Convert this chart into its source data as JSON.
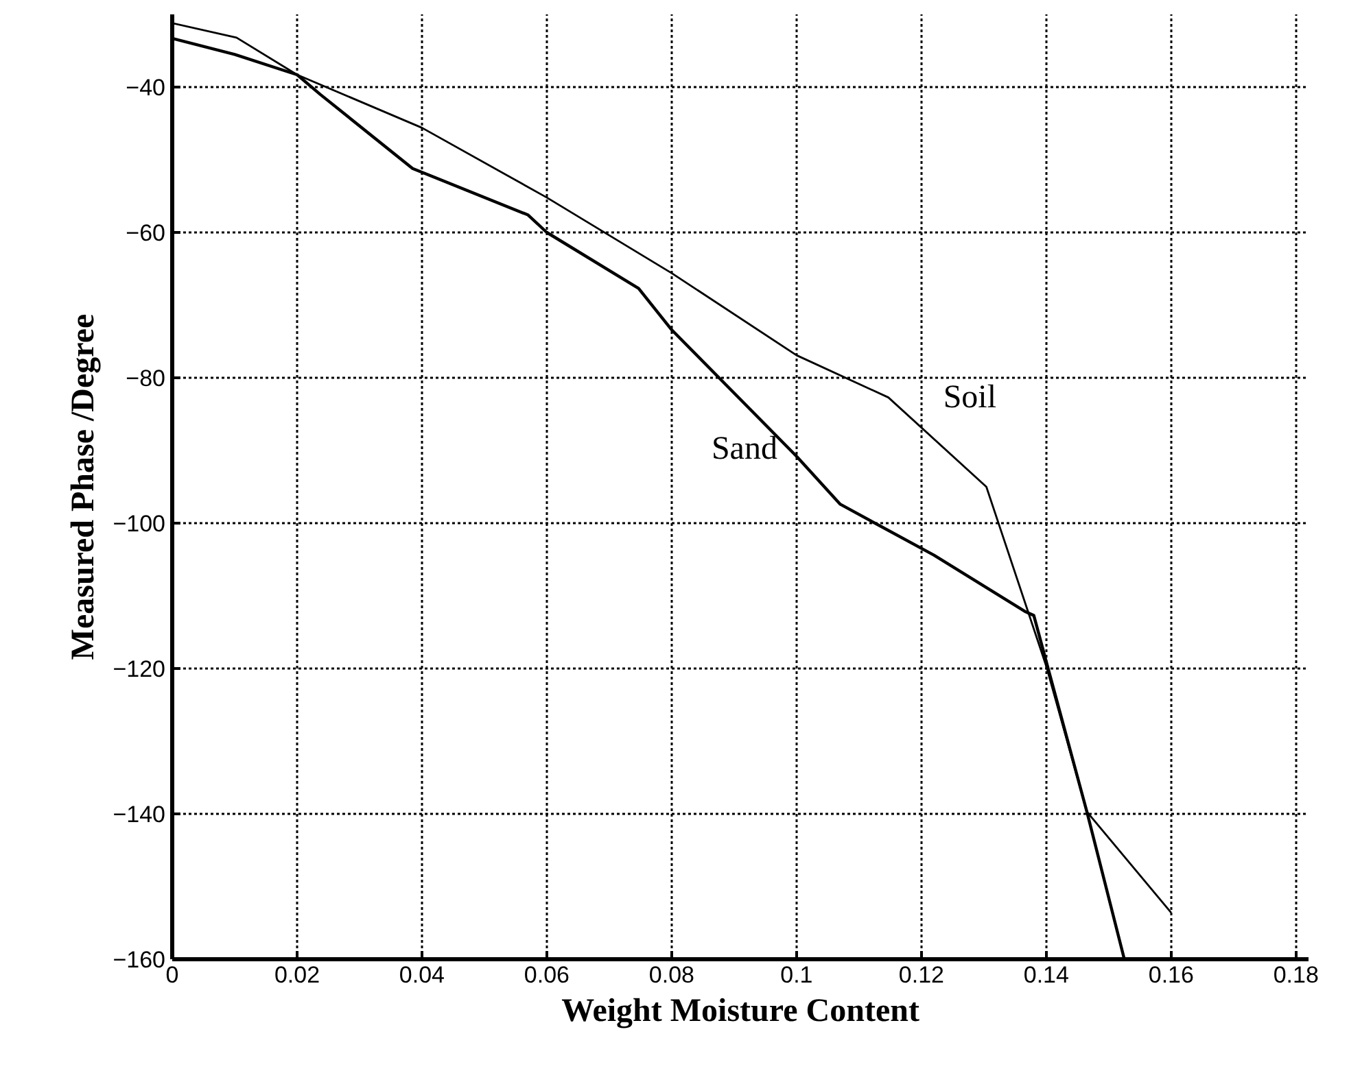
{
  "chart_data": {
    "type": "line",
    "xlabel": "Weight Moisture Content",
    "ylabel": "Measured Phase /Degree",
    "xlim": [
      0,
      0.182
    ],
    "ylim": [
      -160,
      -30
    ],
    "xticks": [
      0,
      0.02,
      0.04,
      0.06,
      0.08,
      0.1,
      0.12,
      0.14,
      0.16,
      0.18
    ],
    "yticks": [
      -160,
      -140,
      -120,
      -100,
      -80,
      -60,
      -40
    ],
    "grid": true,
    "legend": false,
    "marker": "none",
    "line_style": "solid",
    "series": [
      {
        "name": "Sand",
        "color": "#000000",
        "x": [
          0,
          0.01,
          0.02,
          0.0237,
          0.0385,
          0.057,
          0.06,
          0.0747,
          0.08,
          0.1,
          0.107,
          0.122,
          0.1367,
          0.138,
          0.1465,
          0.1525
        ],
        "values": [
          -33.3,
          -35.5,
          -38.3,
          -41,
          -51.2,
          -57.6,
          -60,
          -67.7,
          -73.4,
          -90.8,
          -97.4,
          -104.4,
          -112.2,
          -112.7,
          -139.7,
          -160
        ]
      },
      {
        "name": "Soil",
        "color": "#000000",
        "x": [
          0,
          0.0103,
          0.02,
          0.04,
          0.06,
          0.08,
          0.1,
          0.1147,
          0.1304,
          0.14,
          0.1465,
          0.16
        ],
        "values": [
          -31.2,
          -33.2,
          -38.3,
          -45.6,
          -55.2,
          -65.6,
          -76.9,
          -82.7,
          -95,
          -119.7,
          -139.7,
          -153.6
        ]
      }
    ]
  }
}
